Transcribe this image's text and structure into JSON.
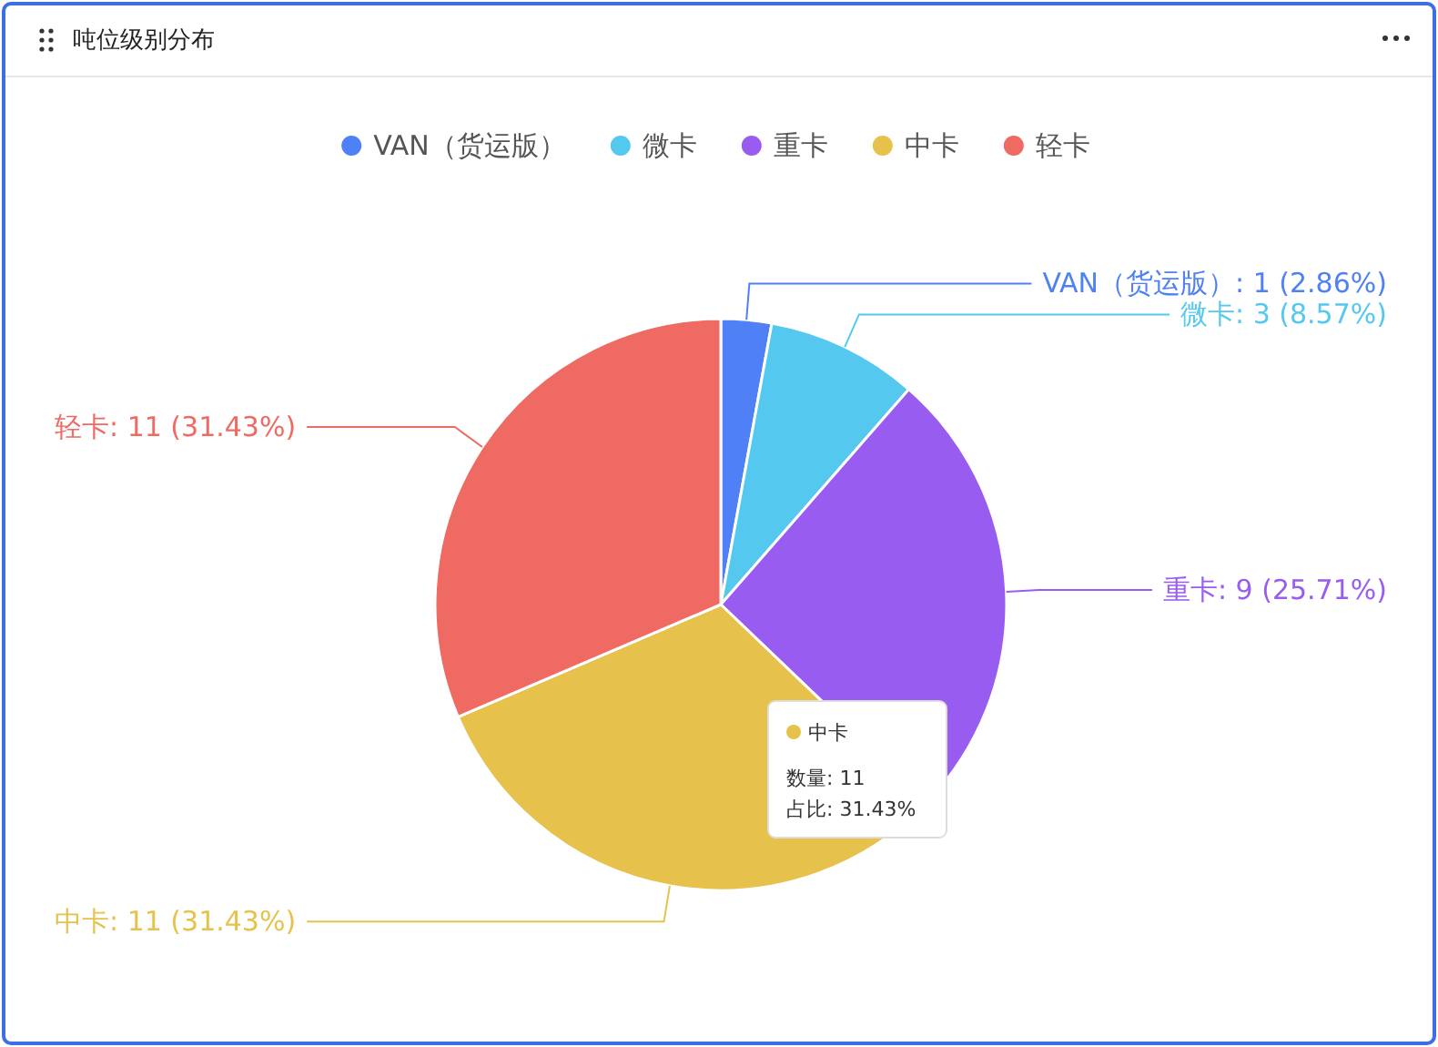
{
  "chart_data": {
    "type": "pie",
    "title": "吨位级别分布",
    "categories": [
      "VAN（货运版）",
      "微卡",
      "重卡",
      "中卡",
      "轻卡"
    ],
    "values": [
      1,
      3,
      9,
      11,
      11
    ],
    "colors": [
      "#4f80f6",
      "#55c8f0",
      "#985cf0",
      "#e6c24c",
      "#ee6a62"
    ],
    "value_labels": [
      ": 1 (2.86%)",
      ": 3 (8.57%)",
      ": 9 (25.71%)",
      ": 11 (31.43%)",
      ": 11 (31.43%)"
    ],
    "legend": "top",
    "annotations": [
      "中卡",
      "数量:  11",
      "占比:  31.43%"
    ]
  }
}
